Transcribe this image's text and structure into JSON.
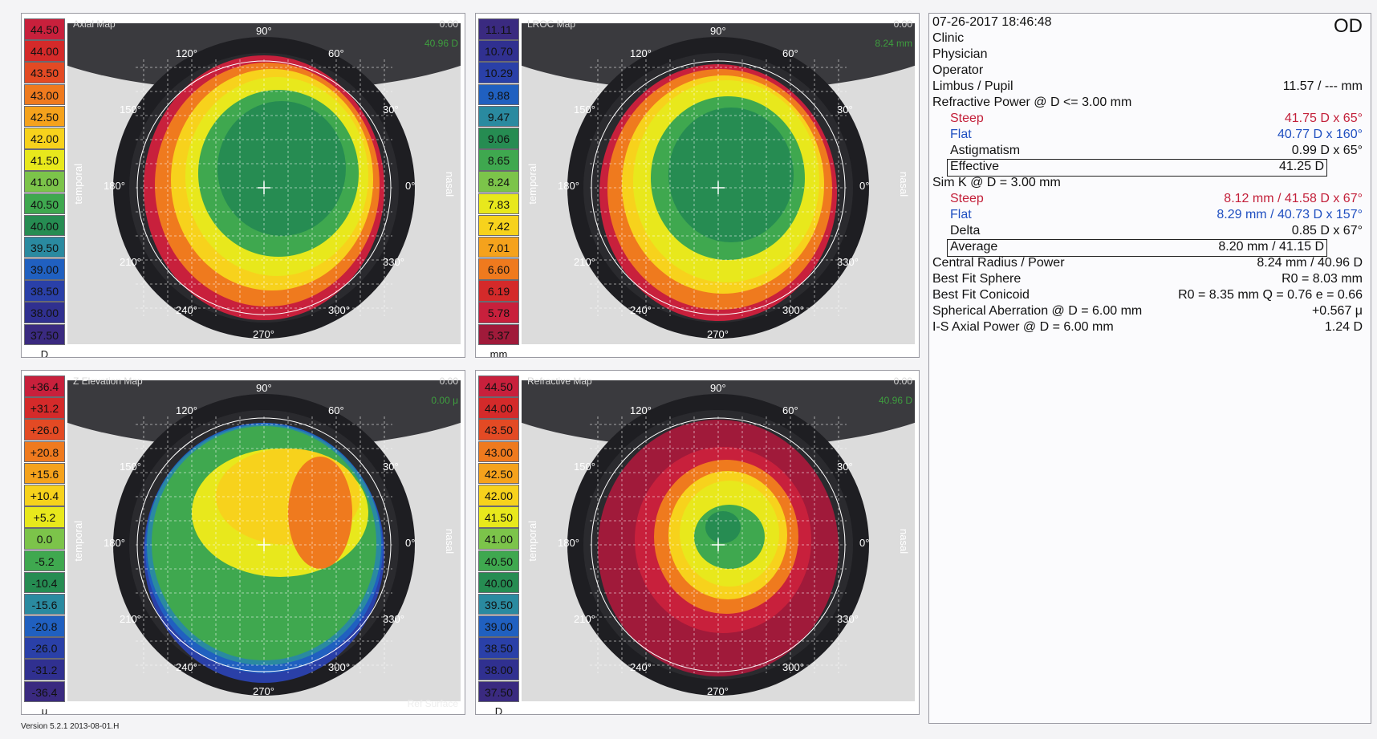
{
  "maps": [
    {
      "title": "Axial Map",
      "corner": "0.00",
      "value": "40.96 D",
      "unit": "D",
      "scale": [
        "44.50",
        "44.00",
        "43.50",
        "43.00",
        "42.50",
        "42.00",
        "41.50",
        "41.00",
        "40.50",
        "40.00",
        "39.50",
        "39.00",
        "38.50",
        "38.00",
        "37.50"
      ],
      "colors": [
        "#c8203c",
        "#d42a2a",
        "#e34a24",
        "#ef7a1e",
        "#f5a21c",
        "#f7d21c",
        "#e8e81c",
        "#7cc44a",
        "#3fa84f",
        "#268c52",
        "#2a8aa0",
        "#2060c0",
        "#2a40a8",
        "#303090",
        "#3a2a80"
      ],
      "ref_label": ""
    },
    {
      "title": "LROC Map",
      "corner": "0.00",
      "value": "8.24 mm",
      "unit": "mm",
      "scale": [
        "11.11",
        "10.70",
        "10.29",
        "9.88",
        "9.47",
        "9.06",
        "8.65",
        "8.24",
        "7.83",
        "7.42",
        "7.01",
        "6.60",
        "6.19",
        "5.78",
        "5.37"
      ],
      "colors": [
        "#3a2a80",
        "#303090",
        "#2a40a8",
        "#2060c0",
        "#2a8aa0",
        "#268c52",
        "#3fa84f",
        "#7cc44a",
        "#e8e81c",
        "#f7d21c",
        "#f5a21c",
        "#ef7a1e",
        "#d42a2a",
        "#c8203c",
        "#a01a3a"
      ],
      "ref_label": ""
    },
    {
      "title": "Z Elevation Map",
      "corner": "0.00",
      "value": "0.00 μ",
      "unit": "μ",
      "scale": [
        "+36.4",
        "+31.2",
        "+26.0",
        "+20.8",
        "+15.6",
        "+10.4",
        "+5.2",
        "0.0",
        "-5.2",
        "-10.4",
        "-15.6",
        "-20.8",
        "-26.0",
        "-31.2",
        "-36.4"
      ],
      "colors": [
        "#c8203c",
        "#d42a2a",
        "#e34a24",
        "#ef7a1e",
        "#f5a21c",
        "#f7d21c",
        "#e8e81c",
        "#7cc44a",
        "#3fa84f",
        "#268c52",
        "#2a8aa0",
        "#2060c0",
        "#2a40a8",
        "#303090",
        "#3a2a80"
      ],
      "ref_label": "Ref Surface"
    },
    {
      "title": "Refractive Map",
      "corner": "0.00",
      "value": "40.96 D",
      "unit": "D",
      "scale": [
        "44.50",
        "44.00",
        "43.50",
        "43.00",
        "42.50",
        "42.00",
        "41.50",
        "41.00",
        "40.50",
        "40.00",
        "39.50",
        "39.00",
        "38.50",
        "38.00",
        "37.50"
      ],
      "colors": [
        "#c8203c",
        "#d42a2a",
        "#e34a24",
        "#ef7a1e",
        "#f5a21c",
        "#f7d21c",
        "#e8e81c",
        "#7cc44a",
        "#3fa84f",
        "#268c52",
        "#2a8aa0",
        "#2060c0",
        "#2a40a8",
        "#303090",
        "#3a2a80"
      ],
      "ref_label": ""
    }
  ],
  "map_labels": {
    "top": "90°",
    "bottom": "270°",
    "a60": "60°",
    "a30": "30°",
    "a0": "0°",
    "a330": "330°",
    "a300": "300°",
    "a120": "120°",
    "a150": "150°",
    "a180": "180°",
    "a210": "210°",
    "a240": "240°",
    "temporal": "temporal",
    "nasal": "nasal"
  },
  "info": {
    "datetime": "07-26-2017   18:46:48",
    "eye": "OD",
    "clinic": "Clinic",
    "physician": "Physician",
    "operator": "Operator",
    "limbus_label": "Limbus / Pupil",
    "limbus_value": "11.57 / --- mm",
    "refractive_label": "Refractive Power @ D <= 3.00 mm",
    "r_steep_label": "Steep",
    "r_steep_value": "41.75 D x   65°",
    "r_flat_label": "Flat",
    "r_flat_value": "40.77 D x 160°",
    "r_astig_label": "Astigmatism",
    "r_astig_value": "0.99 D x   65°",
    "r_eff_label": "Effective",
    "r_eff_value": "41.25 D",
    "simk_label": "Sim K @ D = 3.00 mm",
    "s_steep_label": "Steep",
    "s_steep_value": "8.12 mm / 41.58 D x   67°",
    "s_flat_label": "Flat",
    "s_flat_value": "8.29 mm / 40.73 D x 157°",
    "s_delta_label": "Delta",
    "s_delta_value": "0.85 D x   67°",
    "s_avg_label": "Average",
    "s_avg_value": "8.20 mm / 41.15 D",
    "central_label": "Central Radius / Power",
    "central_value": "8.24 mm / 40.96 D",
    "bfs_label": "Best Fit Sphere",
    "bfs_value": "R0 = 8.03 mm",
    "bfc_label": "Best Fit Conicoid",
    "bfc_value": "R0 = 8.35 mm Q = 0.76 e = 0.66",
    "sa_label": "Spherical Aberration @ D = 6.00 mm",
    "sa_value": "+0.567 μ",
    "is_label": "I-S Axial Power @ D = 6.00 mm",
    "is_value": "1.24 D"
  },
  "version": "Version 5.2.1 2013-08-01.H"
}
